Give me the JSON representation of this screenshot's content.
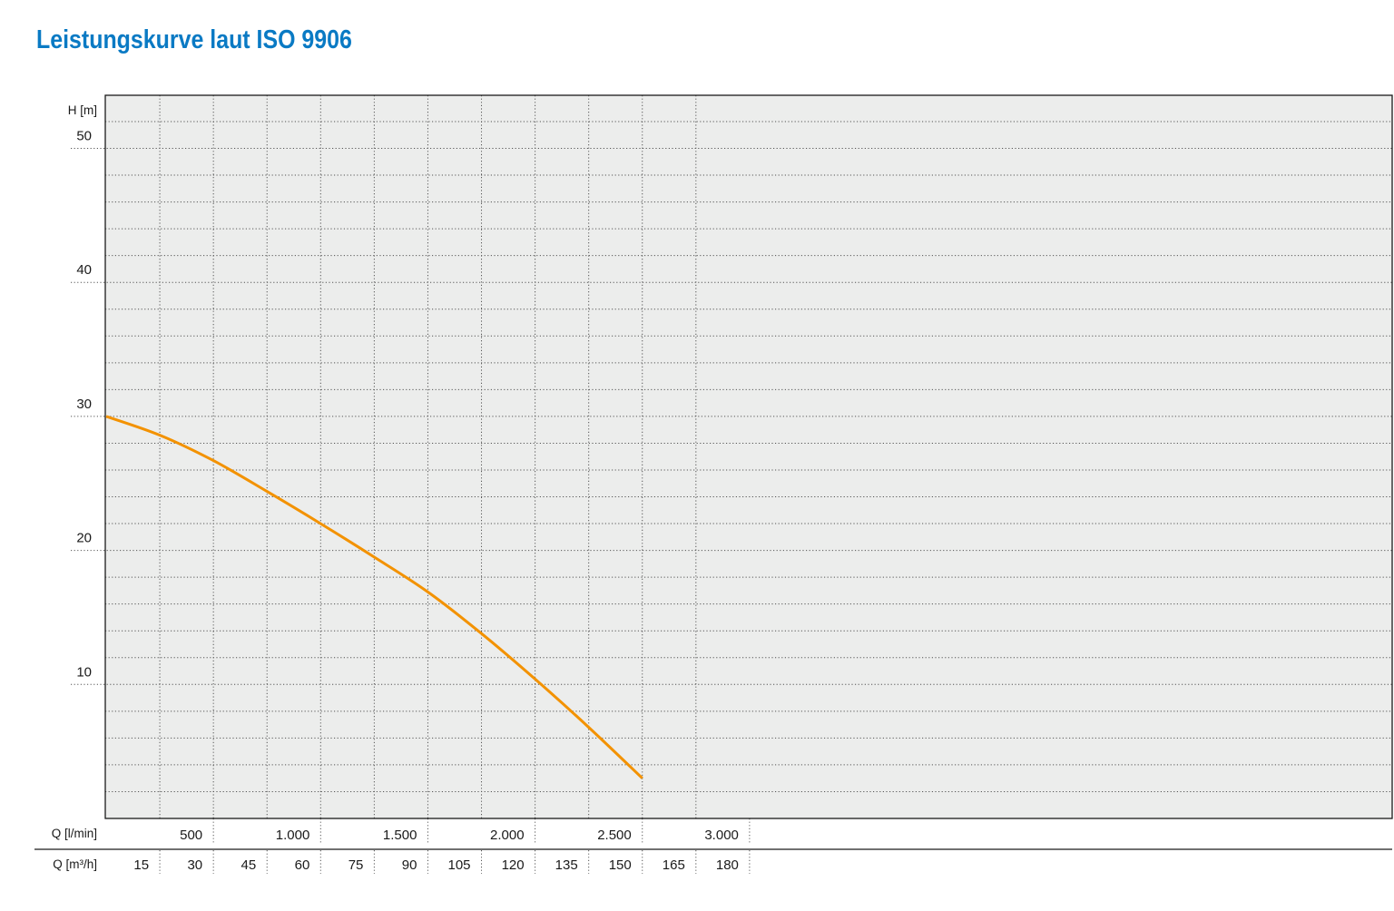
{
  "title": "Leistungskurve laut ISO 9906",
  "colors": {
    "title": "#0a7ac4",
    "curve": "#f39200",
    "plot_background": "#ecedec",
    "grid": "#555555"
  },
  "chart_data": {
    "type": "line",
    "title": "Leistungskurve laut ISO 9906",
    "ylabel": "H [m]",
    "xlabel": "Q [l/min]",
    "xlabel_secondary": "Q [m³/h]",
    "xlim": [
      0,
      3000
    ],
    "ylim": [
      0,
      54
    ],
    "grid": true,
    "y_ticks": [
      "10",
      "20",
      "30",
      "40",
      "50"
    ],
    "x_ticks": [
      "500",
      "1.000",
      "1.500",
      "2.000",
      "2.500",
      "3.000"
    ],
    "x_secondary_ticks": [
      "15",
      "30",
      "45",
      "60",
      "75",
      "90",
      "105",
      "120",
      "135",
      "150",
      "165",
      "180"
    ],
    "series": [
      {
        "x": [
          0,
          250,
          500,
          750,
          1000,
          1250,
          1500,
          1750,
          2000,
          2250,
          2500
        ],
        "y": [
          30.0,
          28.6,
          26.7,
          24.4,
          22.0,
          19.5,
          16.9,
          13.8,
          10.4,
          6.8,
          3.0
        ]
      }
    ]
  }
}
